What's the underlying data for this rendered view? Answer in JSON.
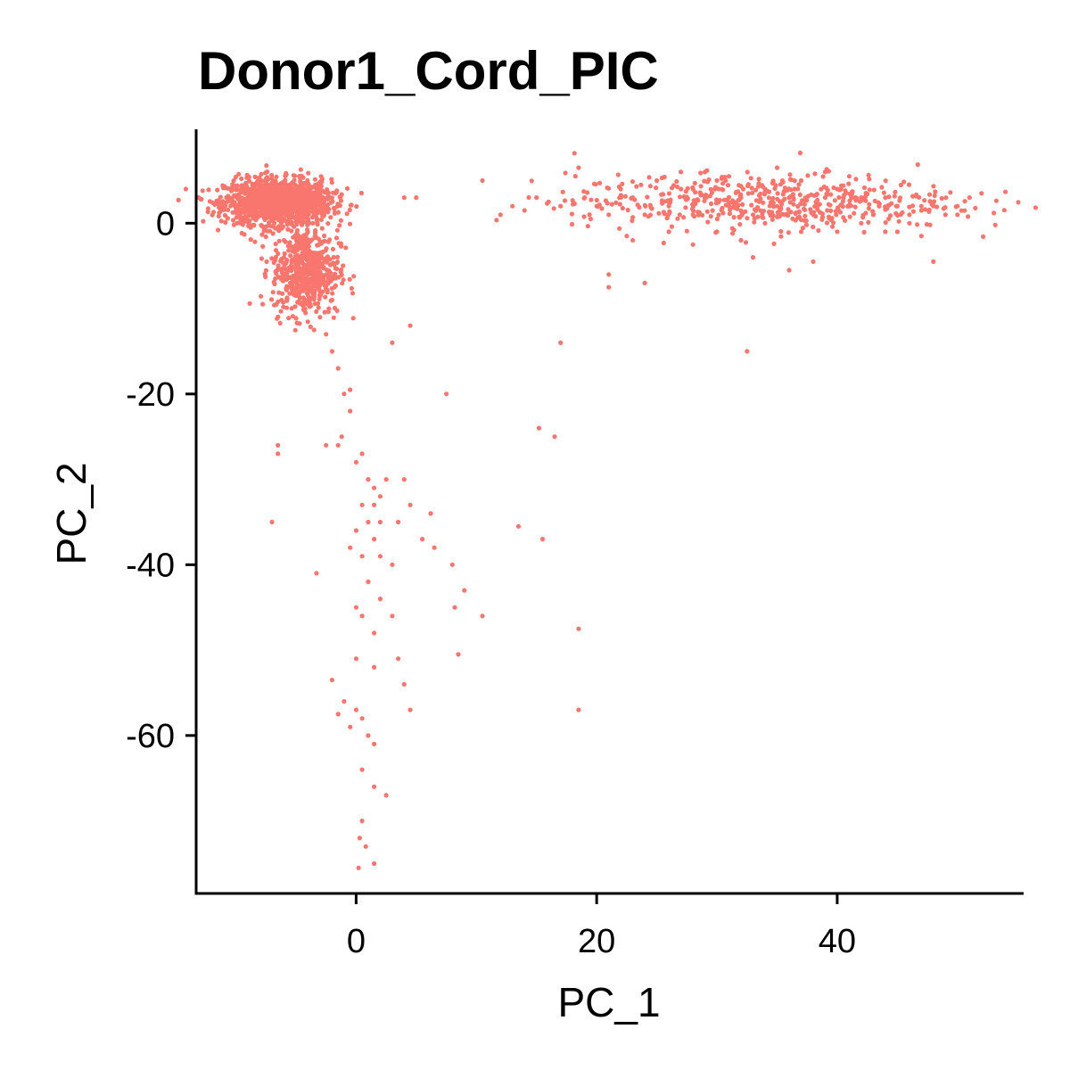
{
  "chart_data": {
    "type": "scatter",
    "title": "Donor1_Cord_PIC",
    "xlabel": "PC_1",
    "ylabel": "PC_2",
    "xlim": [
      -13.3,
      55.5
    ],
    "ylim": [
      -78.5,
      11.0
    ],
    "x_ticks": [
      0,
      20,
      40
    ],
    "y_ticks": [
      0,
      -20,
      -40,
      -60
    ],
    "grid": false,
    "legend": "none",
    "point_color": "#F8766D",
    "series": [
      {
        "points": [
          [
            -8,
            3
          ],
          [
            -7,
            2
          ],
          [
            -6,
            3
          ],
          [
            -5,
            2
          ],
          [
            -4,
            3
          ],
          [
            -9,
            3
          ],
          [
            -6.5,
            4
          ],
          [
            -5.5,
            1.5
          ],
          [
            -7.5,
            1
          ],
          [
            -3.5,
            2.5
          ],
          [
            -4.5,
            4.5
          ],
          [
            -8.5,
            2
          ],
          [
            -6,
            0.5
          ],
          [
            -5,
            4
          ],
          [
            -3,
            3.5
          ],
          [
            -9.5,
            1.5
          ],
          [
            -7,
            4.5
          ],
          [
            -4,
            1
          ],
          [
            -2.8,
            2
          ],
          [
            -6.8,
            0
          ],
          [
            -5.2,
            -3
          ],
          [
            -4.8,
            -5
          ],
          [
            -4,
            -6
          ],
          [
            -3.5,
            -4
          ],
          [
            -5.8,
            -4.5
          ],
          [
            -4.5,
            -7.5
          ],
          [
            -3,
            -8
          ],
          [
            -2.5,
            -6
          ],
          [
            -6,
            -2
          ],
          [
            -3.8,
            -9.5
          ],
          [
            -2,
            -9
          ],
          [
            -4.2,
            -10.5
          ],
          [
            -3,
            -11
          ],
          [
            -5,
            -8.5
          ],
          [
            -1.8,
            -7.5
          ],
          [
            -3.5,
            -12.5
          ],
          [
            -2.5,
            -13
          ],
          [
            -5.3,
            -6.5
          ],
          [
            -6.2,
            -5.5
          ],
          [
            -3.2,
            -3.5
          ],
          [
            -2,
            -15
          ],
          [
            -1.5,
            -17
          ],
          [
            -1,
            -20
          ],
          [
            -0.5,
            -22
          ],
          [
            -1.2,
            -25
          ],
          [
            -1.5,
            -26
          ],
          [
            -2.5,
            -26
          ],
          [
            -6.5,
            -27
          ],
          [
            0,
            -28
          ],
          [
            0.5,
            -27
          ],
          [
            1,
            -30
          ],
          [
            1.5,
            -31
          ],
          [
            2,
            -32
          ],
          [
            2.5,
            -30
          ],
          [
            0.5,
            -33
          ],
          [
            1.5,
            -33
          ],
          [
            1,
            -35
          ],
          [
            2,
            -35
          ],
          [
            0,
            -36
          ],
          [
            1.5,
            -37
          ],
          [
            -0.5,
            -38
          ],
          [
            0.5,
            -39
          ],
          [
            2,
            -39
          ],
          [
            3,
            -40
          ],
          [
            1,
            -42
          ],
          [
            2,
            -44
          ],
          [
            3,
            -46
          ],
          [
            0,
            -45
          ],
          [
            0.5,
            -46
          ],
          [
            1.5,
            -48
          ],
          [
            3.5,
            -51
          ],
          [
            1.5,
            -52
          ],
          [
            0,
            -51
          ],
          [
            -2,
            -53.5
          ],
          [
            4,
            -54
          ],
          [
            -1,
            -56
          ],
          [
            0,
            -57
          ],
          [
            -1.5,
            -57.5
          ],
          [
            4.5,
            -57
          ],
          [
            0.5,
            -58
          ],
          [
            -0.5,
            -59
          ],
          [
            1,
            -60
          ],
          [
            1.5,
            -61
          ],
          [
            0.5,
            -64
          ],
          [
            1.5,
            -66
          ],
          [
            2.5,
            -67
          ],
          [
            0.5,
            -70
          ],
          [
            0.3,
            -72
          ],
          [
            0.8,
            -73
          ],
          [
            1.5,
            -75
          ],
          [
            0.2,
            -75.5
          ],
          [
            -7,
            -35
          ],
          [
            -3.3,
            -41
          ],
          [
            -6.5,
            -26
          ],
          [
            4,
            -30
          ],
          [
            3.5,
            -35
          ],
          [
            4.5,
            -33
          ],
          [
            6.2,
            -34
          ],
          [
            5.5,
            -37
          ],
          [
            6.5,
            -38
          ],
          [
            8,
            -40
          ],
          [
            9,
            -43
          ],
          [
            8.2,
            -45
          ],
          [
            10.5,
            -46
          ],
          [
            8.5,
            -50.5
          ],
          [
            13.5,
            -35.5
          ],
          [
            15.5,
            -37
          ],
          [
            15.2,
            -24
          ],
          [
            16.5,
            -25
          ],
          [
            7.5,
            -20
          ],
          [
            4.5,
            -12
          ],
          [
            3,
            -14
          ],
          [
            -0.5,
            -19.5
          ],
          [
            18.5,
            -47.5
          ],
          [
            18.5,
            -57
          ],
          [
            17,
            -14
          ],
          [
            32.5,
            -15
          ],
          [
            5,
            3
          ],
          [
            4,
            3
          ],
          [
            10.5,
            5
          ],
          [
            12,
            1
          ],
          [
            13,
            2
          ],
          [
            14,
            1.5
          ],
          [
            15,
            3
          ],
          [
            16,
            2.5
          ],
          [
            17,
            2
          ],
          [
            18.5,
            6.5
          ],
          [
            19,
            3
          ],
          [
            20,
            2
          ],
          [
            21,
            1
          ],
          [
            22,
            4
          ],
          [
            23,
            3
          ],
          [
            24,
            1
          ],
          [
            25,
            5
          ],
          [
            26,
            2
          ],
          [
            27,
            4
          ],
          [
            28,
            1
          ],
          [
            29,
            3
          ],
          [
            30,
            5
          ],
          [
            31,
            2
          ],
          [
            32,
            3
          ],
          [
            33,
            1
          ],
          [
            34,
            4
          ],
          [
            35,
            2
          ],
          [
            36,
            3
          ],
          [
            37,
            5
          ],
          [
            38,
            1
          ],
          [
            39,
            3
          ],
          [
            40,
            4
          ],
          [
            41,
            2
          ],
          [
            42,
            3
          ],
          [
            43,
            1
          ],
          [
            44,
            3
          ],
          [
            45,
            2
          ],
          [
            46,
            1
          ],
          [
            47,
            2
          ],
          [
            48,
            2
          ],
          [
            49,
            1
          ],
          [
            50,
            2
          ],
          [
            52,
            3.5
          ],
          [
            26,
            -1
          ],
          [
            30,
            -1
          ],
          [
            34,
            0
          ],
          [
            37,
            -1
          ],
          [
            40,
            -1
          ],
          [
            42,
            0
          ],
          [
            44,
            -1
          ],
          [
            46,
            0
          ],
          [
            48,
            -4.5
          ],
          [
            21,
            -6
          ],
          [
            21,
            -7.5
          ],
          [
            24,
            -7
          ],
          [
            33,
            -4
          ],
          [
            36,
            -5.5
          ],
          [
            38,
            -4.5
          ],
          [
            27,
            6
          ],
          [
            35,
            6.5
          ],
          [
            39,
            6
          ],
          [
            41,
            5.5
          ],
          [
            23,
            -2
          ],
          [
            28,
            -2.5
          ],
          [
            32,
            -2
          ],
          [
            45,
            -1
          ],
          [
            47,
            -1.5
          ],
          [
            50,
            1
          ],
          [
            51,
            3
          ],
          [
            29,
            6
          ],
          [
            31,
            5.5
          ],
          [
            19.5,
            0.5
          ],
          [
            22.5,
            -1.5
          ]
        ]
      }
    ],
    "clusters": [
      {
        "cx": -6.5,
        "cy": 2.5,
        "sx": 2.2,
        "sy": 1.3,
        "n": 1400
      },
      {
        "cx": -4.2,
        "cy": -5.5,
        "sx": 1.4,
        "sy": 2.6,
        "n": 550
      },
      {
        "cx": 34,
        "cy": 2.5,
        "sx": 8,
        "sy": 1.6,
        "n": 520
      }
    ]
  }
}
